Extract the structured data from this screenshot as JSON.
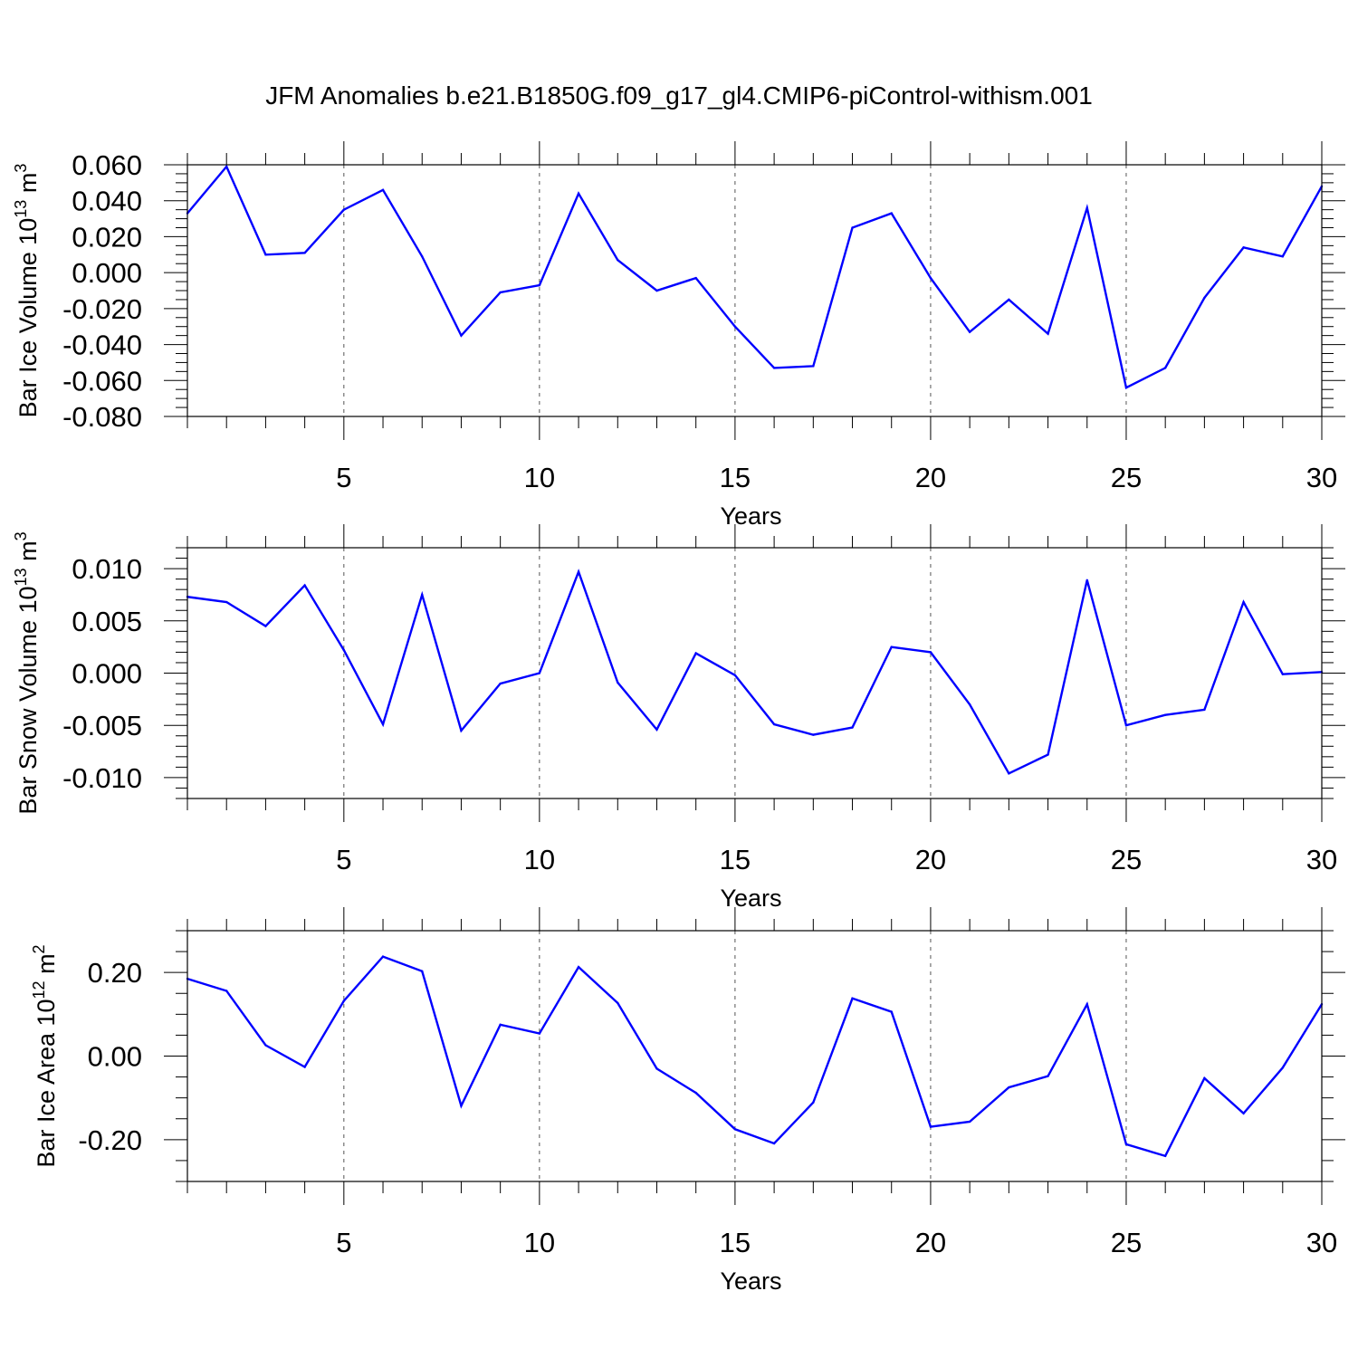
{
  "title": "JFM Anomalies b.e21.B1850G.f09_g17_gl4.CMIP6-piControl-withism.001",
  "colors": {
    "line": "#0000ff",
    "frame": "#000000",
    "grid": "#555555"
  },
  "chart_data": [
    {
      "type": "line",
      "ylabel": "Bar Ice Volume 10",
      "ylabel_exp": "13",
      "ylabel_unit": " m",
      "ylabel_unit_exp": "3",
      "xlabel": "Years",
      "xlim": [
        1,
        30
      ],
      "ylim": [
        -0.08,
        0.06
      ],
      "xticks": [
        5,
        10,
        15,
        20,
        25,
        30
      ],
      "xtick_labels": [
        "5",
        "10",
        "15",
        "20",
        "25",
        "30"
      ],
      "yticks": [
        -0.08,
        -0.06,
        -0.04,
        -0.02,
        0.0,
        0.02,
        0.04,
        0.06
      ],
      "ytick_labels": [
        "-0.080",
        "-0.060",
        "-0.040",
        "-0.020",
        "0.000",
        "0.020",
        "0.040",
        "0.060"
      ],
      "x": [
        1,
        2,
        3,
        4,
        5,
        6,
        7,
        8,
        9,
        10,
        11,
        12,
        13,
        14,
        15,
        16,
        17,
        18,
        19,
        20,
        21,
        22,
        23,
        24,
        25,
        26,
        27,
        28,
        29,
        30
      ],
      "values": [
        0.033,
        0.059,
        0.01,
        0.011,
        0.035,
        0.046,
        0.009,
        -0.035,
        -0.011,
        -0.007,
        0.044,
        0.007,
        -0.01,
        -0.003,
        -0.03,
        -0.053,
        -0.052,
        0.025,
        0.033,
        -0.003,
        -0.033,
        -0.015,
        -0.034,
        0.036,
        -0.064,
        -0.053,
        -0.014,
        0.014,
        0.009,
        0.048
      ]
    },
    {
      "type": "line",
      "ylabel": "Bar Snow Volume 10",
      "ylabel_exp": "13",
      "ylabel_unit": " m",
      "ylabel_unit_exp": "3",
      "xlabel": "Years",
      "xlim": [
        1,
        30
      ],
      "ylim": [
        -0.012,
        0.012
      ],
      "xticks": [
        5,
        10,
        15,
        20,
        25,
        30
      ],
      "xtick_labels": [
        "5",
        "10",
        "15",
        "20",
        "25",
        "30"
      ],
      "yticks": [
        -0.01,
        -0.005,
        0.0,
        0.005,
        0.01
      ],
      "ytick_labels": [
        "-0.010",
        "-0.005",
        "0.000",
        "0.005",
        "0.010"
      ],
      "x": [
        1,
        2,
        3,
        4,
        5,
        6,
        7,
        8,
        9,
        10,
        11,
        12,
        13,
        14,
        15,
        16,
        17,
        18,
        19,
        20,
        21,
        22,
        23,
        24,
        25,
        26,
        27,
        28,
        29,
        30
      ],
      "values": [
        0.0073,
        0.0068,
        0.0045,
        0.0084,
        0.0022,
        -0.0049,
        0.0075,
        -0.0055,
        -0.001,
        0.0,
        0.0097,
        -0.0009,
        -0.0054,
        0.0019,
        -0.0002,
        -0.0049,
        -0.0059,
        -0.0052,
        0.0025,
        0.002,
        -0.003,
        -0.0096,
        -0.0078,
        0.0089,
        -0.005,
        -0.004,
        -0.0035,
        0.0068,
        -0.0001,
        0.0001
      ]
    },
    {
      "type": "line",
      "ylabel": "Bar Ice Area 10",
      "ylabel_exp": "12",
      "ylabel_unit": " m",
      "ylabel_unit_exp": "2",
      "xlabel": "Years",
      "xlim": [
        1,
        30
      ],
      "ylim": [
        -0.3,
        0.3
      ],
      "xticks": [
        5,
        10,
        15,
        20,
        25,
        30
      ],
      "xtick_labels": [
        "5",
        "10",
        "15",
        "20",
        "25",
        "30"
      ],
      "yticks": [
        -0.2,
        0.0,
        0.2
      ],
      "ytick_labels": [
        "-0.20",
        "0.00",
        "0.20"
      ],
      "x": [
        1,
        2,
        3,
        4,
        5,
        6,
        7,
        8,
        9,
        10,
        11,
        12,
        13,
        14,
        15,
        16,
        17,
        18,
        19,
        20,
        21,
        22,
        23,
        24,
        25,
        26,
        27,
        28,
        29,
        30
      ],
      "values": [
        0.185,
        0.156,
        0.026,
        -0.026,
        0.132,
        0.238,
        0.203,
        -0.119,
        0.075,
        0.054,
        0.213,
        0.127,
        -0.03,
        -0.088,
        -0.175,
        -0.209,
        -0.111,
        0.138,
        0.106,
        -0.169,
        -0.157,
        -0.075,
        -0.048,
        0.124,
        -0.211,
        -0.239,
        -0.053,
        -0.137,
        -0.028,
        0.124
      ]
    }
  ]
}
